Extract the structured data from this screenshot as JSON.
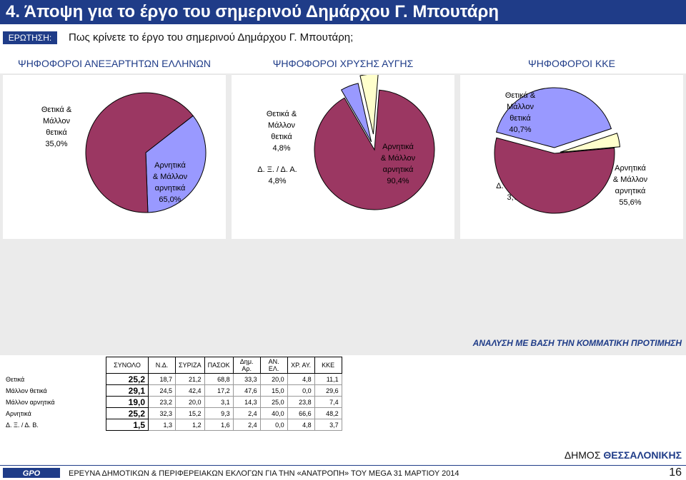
{
  "header": {
    "title": "4.   Άποψη για το έργο του σημερινού Δημάρχου Γ. Μπουτάρη"
  },
  "question": {
    "label": "ΕΡΩΤΗΣΗ:",
    "text": "Πως κρίνετε το έργο του σημερινού Δημάρχου Γ. Μπουτάρη;"
  },
  "colors": {
    "brand_blue": "#1f3c88",
    "negative": "#9b3762",
    "positive": "#9999ff",
    "dk_na": "#ffffcc"
  },
  "chart_data": [
    {
      "type": "pie",
      "title": "ΨΗΦΟΦΟΡΟΙ ΑΝΕΞΑΡΤΗΤΩΝ ΕΛΛΗΝΩΝ",
      "slices": [
        {
          "label": [
            "Θετικά &",
            "Μάλλον",
            "θετικά"
          ],
          "value": 35.0,
          "value_text": "35,0%",
          "color": "#9999ff"
        },
        {
          "label": [
            "Αρνητικά",
            "& Μάλλον",
            "αρνητικά"
          ],
          "value": 65.0,
          "value_text": "65,0%",
          "color": "#9b3762"
        }
      ]
    },
    {
      "type": "pie",
      "title": "ΨΗΦΟΦΟΡΟΙ ΧΡΥΣΗΣ ΑΥΓΗΣ",
      "slices": [
        {
          "label": [
            "Θετικά &",
            "Μάλλον",
            "θετικά"
          ],
          "value": 4.8,
          "value_text": "4,8%",
          "color": "#9999ff"
        },
        {
          "label": [
            "Δ. Ξ. / Δ. Α."
          ],
          "value": 4.8,
          "value_text": "4,8%",
          "color": "#ffffcc"
        },
        {
          "label": [
            "Αρνητικά",
            "& Μάλλον",
            "αρνητικά"
          ],
          "value": 90.4,
          "value_text": "90,4%",
          "color": "#9b3762"
        }
      ]
    },
    {
      "type": "pie",
      "title": "ΨΗΦΟΦΟΡΟΙ ΚΚΕ",
      "slices": [
        {
          "label": [
            "Θετικά &",
            "Μάλλον",
            "θετικά"
          ],
          "value": 40.7,
          "value_text": "40,7%",
          "color": "#9999ff"
        },
        {
          "label": [
            "Δ. Ξ. / Δ. Α."
          ],
          "value": 3.7,
          "value_text": "3,7%",
          "color": "#ffffcc"
        },
        {
          "label": [
            "Αρνητικά",
            "& Μάλλον",
            "αρνητικά"
          ],
          "value": 55.6,
          "value_text": "55,6%",
          "color": "#9b3762"
        }
      ]
    },
    {
      "type": "table",
      "title": "ΑΝΑΛΥΣΗ ΜΕ ΒΑΣΗ ΤΗΝ ΚΟΜΜΑΤΙΚΗ ΠΡΟΤΙΜΗΣΗ",
      "columns": [
        "ΣΥΝΟΛΟ",
        "Ν.Δ.",
        "ΣΥΡΙΖΑ",
        "ΠΑΣΟΚ",
        "Δημ. Αρ.",
        "ΑΝ. ΕΛ.",
        "ΧΡ. ΑΥ.",
        "ΚΚΕ"
      ],
      "rows": [
        {
          "label": "Θετικά",
          "values": [
            "25,2",
            "18,7",
            "21,2",
            "68,8",
            "33,3",
            "20,0",
            "4,8",
            "11,1"
          ]
        },
        {
          "label": "Μάλλον θετικά",
          "values": [
            "29,1",
            "24,5",
            "42,4",
            "17,2",
            "47,6",
            "15,0",
            "0,0",
            "29,6"
          ]
        },
        {
          "label": "Μάλλον αρνητικά",
          "values": [
            "19,0",
            "23,2",
            "20,0",
            "3,1",
            "14,3",
            "25,0",
            "23,8",
            "7,4"
          ]
        },
        {
          "label": "Αρνητικά",
          "values": [
            "25,2",
            "32,3",
            "15,2",
            "9,3",
            "2,4",
            "40,0",
            "66,6",
            "48,2"
          ]
        },
        {
          "label": "Δ. Ξ. / Δ. Β.",
          "values": [
            "1,5",
            "1,3",
            "1,2",
            "1,6",
            "2,4",
            "0,0",
            "4,8",
            "3,7"
          ]
        }
      ]
    }
  ],
  "footer": {
    "city_prefix": "ΔΗΜΟΣ ",
    "city_name": "ΘΕΣΣΑΛΟΝΙΚΗΣ",
    "logo_text": "GPO",
    "survey": "ΕΡΕΥΝΑ ΔΗΜΟΤΙΚΩΝ & ΠΕΡΙΦΕΡΕΙΑΚΩΝ ΕΚΛΟΓΩΝ ΓΙΑ ΤΗΝ «ΑΝΑΤΡΟΠΗ» ΤΟΥ MEGA  31 ΜΑΡΤΙΟΥ 2014",
    "page": "16"
  }
}
